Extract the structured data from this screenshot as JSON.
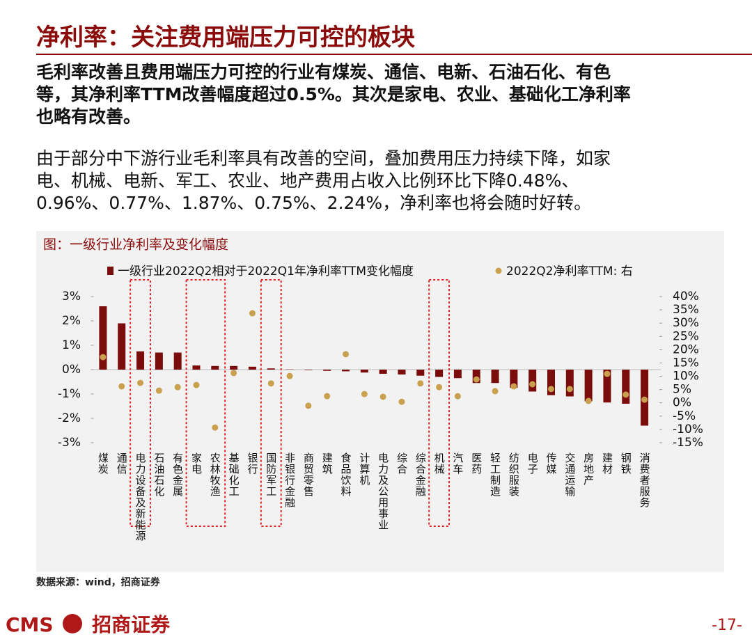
{
  "header": {
    "title": "净利率：关注费用端压力可控的板块"
  },
  "paragraphs": [
    {
      "lines": [
        "毛利率改善且费用端压力可控的行业有煤炭、通信、电新、石油石化、有色",
        "等，其净利率TTM改善幅度超过0.5%。其次是家电、农业、基础化工净利率",
        "也略有改善。"
      ]
    },
    {
      "lines": [
        "由于部分中下游行业毛利率具有改善的空间，叠加费用压力持续下降，如家",
        "电、机械、电新、军工、农业、地产费用占收入比例环比下降0.48%、",
        "0.96%、0.77%、1.87%、0.75%、2.24%，净利率也将会随时好转。"
      ]
    }
  ],
  "chart_data": {
    "type": "bar",
    "title": "图：一级行业净利率及变化幅度",
    "categories": [
      "煤炭",
      "通信",
      "电力设备及新能源",
      "石油石化",
      "有色金属",
      "家电",
      "农林牧渔",
      "基础化工",
      "银行",
      "国防军工",
      "非银行金融",
      "商贸零售",
      "建筑",
      "食品饮料",
      "计算机",
      "电力及公用事业",
      "综合",
      "综合金融",
      "机械",
      "汽车",
      "医药",
      "轻工制造",
      "纺织服装",
      "电子",
      "传媒",
      "交通运输",
      "房地产",
      "建材",
      "钢铁",
      "消费者服务"
    ],
    "series": [
      {
        "name": "一级行业2022Q2相对于2022Q1年净利率TTM变化幅度",
        "type": "bar",
        "color": "#7a0c0c",
        "values": [
          2.6,
          1.9,
          0.75,
          0.7,
          0.7,
          0.17,
          0.15,
          0.15,
          0.12,
          0.05,
          0.01,
          -0.02,
          -0.05,
          -0.07,
          -0.12,
          -0.17,
          -0.2,
          -0.25,
          -0.3,
          -0.35,
          -0.55,
          -0.55,
          -0.75,
          -0.9,
          -1.05,
          -1.1,
          -1.3,
          -1.35,
          -1.4,
          -2.3
        ]
      },
      {
        "name": "2022Q2净利率TTM: 右",
        "type": "scatter",
        "axis": "y2",
        "color": "#c9a04e",
        "values": [
          17.2,
          6.2,
          7.5,
          4.6,
          5.9,
          6.7,
          -9.3,
          11.2,
          33.7,
          7.3,
          10.1,
          -1.1,
          2.5,
          18.3,
          3.3,
          2.3,
          0.4,
          7.3,
          5.9,
          2.5,
          8.8,
          4.4,
          6.2,
          7.0,
          5.2,
          5.2,
          0.7,
          10.9,
          3.1,
          1.2
        ]
      }
    ],
    "ylim": [
      -3,
      3
    ],
    "yticks": [
      {
        "value": -3,
        "label": "-3%"
      },
      {
        "value": -2,
        "label": "-2%"
      },
      {
        "value": -1,
        "label": "-1%"
      },
      {
        "value": 0,
        "label": "0%"
      },
      {
        "value": 1,
        "label": "1%"
      },
      {
        "value": 2,
        "label": "2%"
      },
      {
        "value": 3,
        "label": "3%"
      }
    ],
    "y2lim": [
      -15,
      40
    ],
    "y2ticks": [
      {
        "value": -15,
        "label": "-15%"
      },
      {
        "value": -10,
        "label": "-10%"
      },
      {
        "value": -5,
        "label": "-5%"
      },
      {
        "value": 0,
        "label": "0%"
      },
      {
        "value": 5,
        "label": "5%"
      },
      {
        "value": 10,
        "label": "10%"
      },
      {
        "value": 15,
        "label": "15%"
      },
      {
        "value": 20,
        "label": "20%"
      },
      {
        "value": 25,
        "label": "25%"
      },
      {
        "value": 30,
        "label": "30%"
      },
      {
        "value": 35,
        "label": "35%"
      },
      {
        "value": 40,
        "label": "40%"
      }
    ]
  },
  "source": "数据来源：wind，招商证券",
  "footer": {
    "logo": "CMS",
    "brand": "招商证券",
    "page": "-17-"
  }
}
